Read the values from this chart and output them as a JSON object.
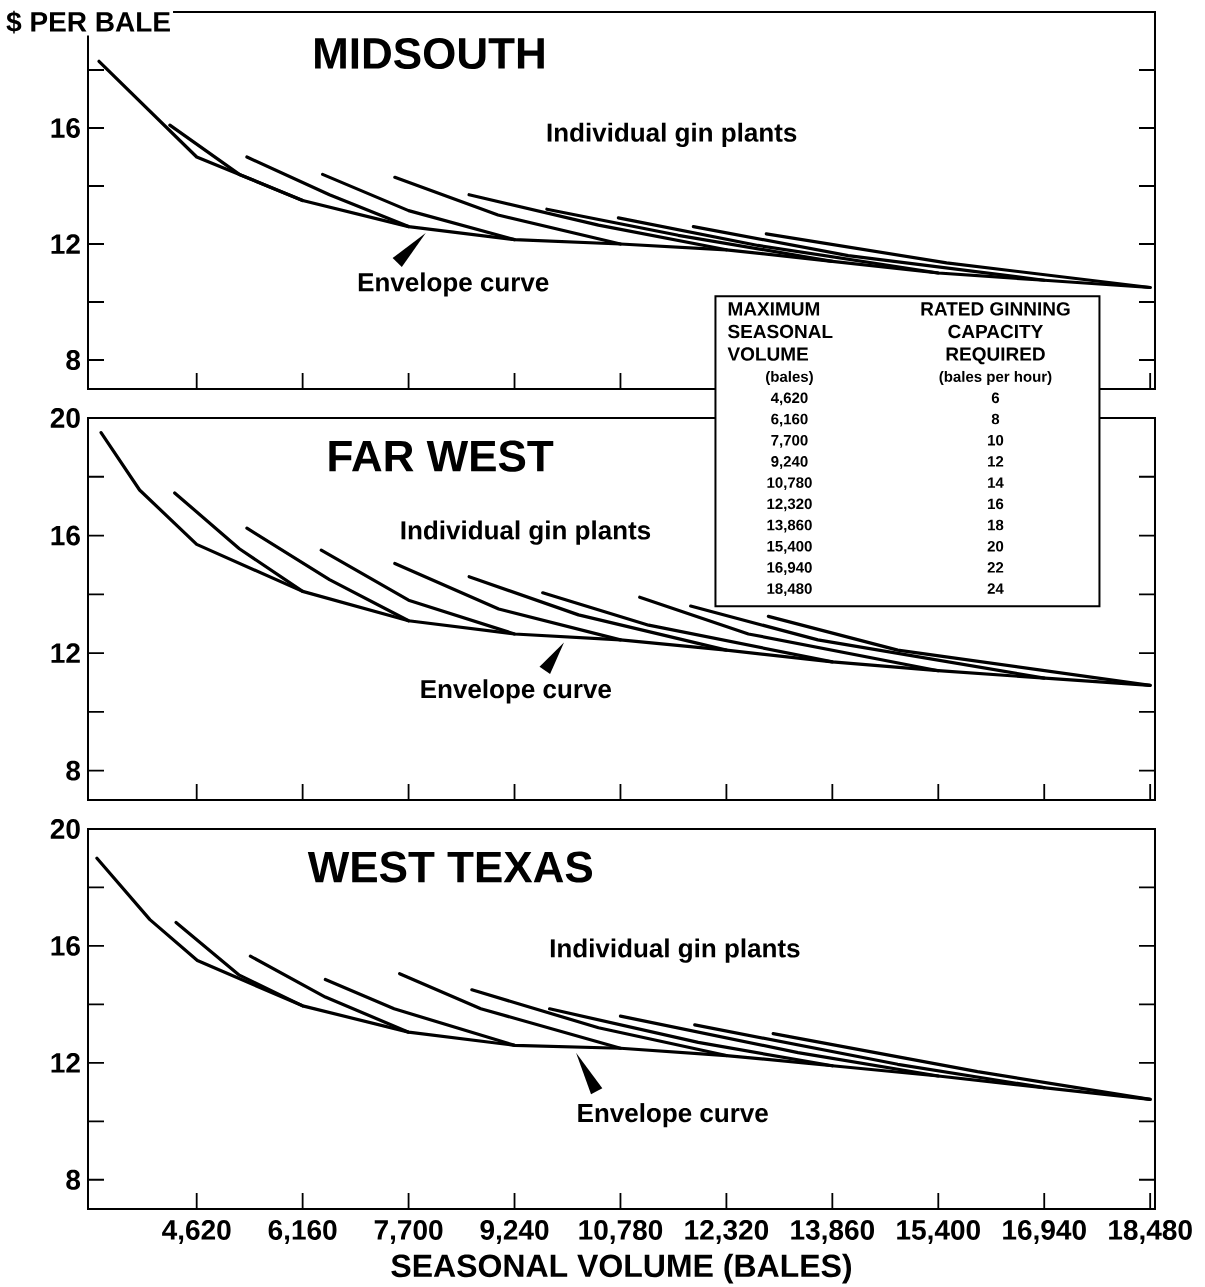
{
  "chart_data": [
    {
      "type": "line",
      "title": "MIDSOUTH",
      "ylabel": "$ PER BALE",
      "tick_labels": "y",
      "xlim": [
        3040,
        18550
      ],
      "ylim": [
        7,
        20
      ],
      "xticks": [
        {
          "value": 4620,
          "label": null
        },
        {
          "value": 6160,
          "label": null
        },
        {
          "value": 7700,
          "label": null
        },
        {
          "value": 9240,
          "label": null
        },
        {
          "value": 10780,
          "label": null
        },
        {
          "value": 12320,
          "label": null
        },
        {
          "value": 13860,
          "label": null
        },
        {
          "value": 15400,
          "label": null
        },
        {
          "value": 16940,
          "label": null
        },
        {
          "value": 18480,
          "label": null
        }
      ],
      "yticks": [
        8,
        {
          "value": 10,
          "label": null
        },
        12,
        {
          "value": 14,
          "label": null
        },
        16,
        {
          "value": 18,
          "label": null
        },
        {
          "value": 20,
          "label": null
        }
      ],
      "annotations": [
        "Individual gin plants",
        {
          "text": "Envelope curve",
          "x": 8000,
          "y": 12.5
        },
        "MAXIMUM SEASONAL VOLUME",
        "(bales)",
        "RATED GINNING CAPACITY REQUIRED",
        "(bales per hour)",
        "4,620",
        "6,160",
        "7,700",
        "9,240",
        "10,780",
        "12,320",
        "13,860",
        "15,400",
        "16,940",
        "18,480",
        "6",
        "8",
        "10",
        "12",
        "14",
        "16",
        "18",
        "20",
        "22",
        "24"
      ],
      "series": [
        {
          "color": "#000000",
          "x": [
            3200,
            4620,
            6160,
            7700,
            9240,
            10780,
            12320,
            13860,
            15400,
            16940,
            18480
          ],
          "values": [
            18.3,
            15.0,
            13.5,
            12.6,
            12.15,
            12.0,
            11.8,
            11.4,
            11.0,
            10.75,
            10.5
          ]
        },
        {
          "color": "#000000",
          "x": [
            4230,
            5240,
            6160
          ],
          "values": [
            16.1,
            14.4,
            13.5
          ]
        },
        {
          "color": "#000000",
          "x": [
            5350,
            6550,
            7700
          ],
          "values": [
            15.0,
            13.7,
            12.6
          ]
        },
        {
          "color": "#000000",
          "x": [
            6450,
            7700,
            9240
          ],
          "values": [
            14.4,
            13.15,
            12.15
          ]
        },
        {
          "color": "#000000",
          "x": [
            7500,
            9000,
            10780
          ],
          "values": [
            14.3,
            13.0,
            12.0
          ]
        },
        {
          "color": "#000000",
          "x": [
            8580,
            10460,
            12320
          ],
          "values": [
            13.7,
            12.65,
            11.8
          ]
        },
        {
          "color": "#000000",
          "x": [
            9710,
            11620,
            13860
          ],
          "values": [
            13.2,
            12.3,
            11.4
          ]
        },
        {
          "color": "#000000",
          "x": [
            10750,
            12780,
            15400
          ],
          "values": [
            12.9,
            11.95,
            11.0
          ]
        },
        {
          "color": "#000000",
          "x": [
            11840,
            14090,
            16940
          ],
          "values": [
            12.6,
            11.6,
            10.75
          ]
        },
        {
          "color": "#000000",
          "x": [
            12900,
            15520,
            18480
          ],
          "values": [
            12.35,
            11.35,
            10.5
          ]
        }
      ]
    },
    {
      "type": "line",
      "title": "FAR WEST",
      "tick_labels": "y",
      "xlim": [
        3040,
        18550
      ],
      "ylim": [
        7,
        20
      ],
      "xticks": [
        {
          "value": 4620,
          "label": null
        },
        {
          "value": 6160,
          "label": null
        },
        {
          "value": 7700,
          "label": null
        },
        {
          "value": 9240,
          "label": null
        },
        {
          "value": 10780,
          "label": null
        },
        {
          "value": 12320,
          "label": null
        },
        {
          "value": 13860,
          "label": null
        },
        {
          "value": 15400,
          "label": null
        },
        {
          "value": 16940,
          "label": null
        },
        {
          "value": 18480,
          "label": null
        }
      ],
      "yticks": [
        8,
        {
          "value": 10,
          "label": null
        },
        12,
        {
          "value": 14,
          "label": null
        },
        16,
        {
          "value": 18,
          "label": null
        },
        20
      ],
      "annotations": [
        "Individual gin plants",
        {
          "text": "Envelope curve",
          "x": 10000,
          "y": 12.5
        }
      ],
      "series": [
        {
          "color": "#000000",
          "x": [
            3230,
            3790,
            4620,
            6160,
            7700,
            9240,
            10780,
            12320,
            13860,
            15400,
            16940,
            18480
          ],
          "values": [
            19.5,
            17.55,
            15.7,
            14.1,
            13.1,
            12.65,
            12.45,
            12.1,
            11.7,
            11.4,
            11.15,
            10.9
          ]
        },
        {
          "color": "#000000",
          "x": [
            4300,
            5240,
            6160
          ],
          "values": [
            17.45,
            15.55,
            14.1
          ]
        },
        {
          "color": "#000000",
          "x": [
            5350,
            6550,
            7700
          ],
          "values": [
            16.25,
            14.5,
            13.1
          ]
        },
        {
          "color": "#000000",
          "x": [
            6430,
            7700,
            9240
          ],
          "values": [
            15.5,
            13.8,
            12.65
          ]
        },
        {
          "color": "#000000",
          "x": [
            7500,
            9010,
            10780
          ],
          "values": [
            15.05,
            13.5,
            12.45
          ]
        },
        {
          "color": "#000000",
          "x": [
            8580,
            10170,
            12320
          ],
          "values": [
            14.6,
            13.3,
            12.1
          ]
        },
        {
          "color": "#000000",
          "x": [
            9650,
            11190,
            13860
          ],
          "values": [
            14.05,
            12.95,
            11.7
          ]
        },
        {
          "color": "#000000",
          "x": [
            11060,
            12640,
            15400
          ],
          "values": [
            13.9,
            12.65,
            11.4
          ]
        },
        {
          "color": "#000000",
          "x": [
            11800,
            13650,
            16940
          ],
          "values": [
            13.6,
            12.45,
            11.15
          ]
        },
        {
          "color": "#000000",
          "x": [
            12930,
            14810,
            18480
          ],
          "values": [
            13.25,
            12.1,
            10.9
          ]
        }
      ]
    },
    {
      "type": "line",
      "title": "WEST TEXAS",
      "xlabel": "SEASONAL VOLUME (BALES)",
      "xlim": [
        3040,
        18550
      ],
      "ylim": [
        7,
        20
      ],
      "xticks": [
        {
          "value": 4620,
          "label": "4,620"
        },
        {
          "value": 6160,
          "label": "6,160"
        },
        {
          "value": 7700,
          "label": "7,700"
        },
        {
          "value": 9240,
          "label": "9,240"
        },
        {
          "value": 10780,
          "label": "10,780"
        },
        {
          "value": 12320,
          "label": "12,320"
        },
        {
          "value": 13860,
          "label": "13,860"
        },
        {
          "value": 15400,
          "label": "15,400"
        },
        {
          "value": 16940,
          "label": "16,940"
        },
        {
          "value": 18480,
          "label": "18,480"
        }
      ],
      "yticks": [
        8,
        {
          "value": 10,
          "label": null
        },
        12,
        {
          "value": 14,
          "label": null
        },
        16,
        {
          "value": 18,
          "label": null
        },
        20
      ],
      "annotations": [
        "Individual gin plants",
        {
          "text": "Envelope curve",
          "x": 10100,
          "y": 12.5
        }
      ],
      "series": [
        {
          "color": "#000000",
          "x": [
            3170,
            3940,
            4630,
            6160,
            7700,
            9240,
            10780,
            12320,
            13860,
            15400,
            16940,
            18480
          ],
          "values": [
            19.0,
            16.9,
            15.5,
            13.95,
            13.05,
            12.6,
            12.5,
            12.25,
            11.9,
            11.55,
            11.15,
            10.75
          ]
        },
        {
          "color": "#000000",
          "x": [
            4320,
            5240,
            6160
          ],
          "values": [
            16.8,
            15.0,
            13.95
          ]
        },
        {
          "color": "#000000",
          "x": [
            5400,
            6490,
            7700
          ],
          "values": [
            15.65,
            14.25,
            13.05
          ]
        },
        {
          "color": "#000000",
          "x": [
            6490,
            7490,
            9240
          ],
          "values": [
            14.85,
            13.85,
            12.6
          ]
        },
        {
          "color": "#000000",
          "x": [
            7570,
            8750,
            10780
          ],
          "values": [
            15.05,
            13.85,
            12.5
          ]
        },
        {
          "color": "#000000",
          "x": [
            8620,
            10460,
            12320
          ],
          "values": [
            14.5,
            13.2,
            12.25
          ]
        },
        {
          "color": "#000000",
          "x": [
            9750,
            11910,
            13860
          ],
          "values": [
            13.85,
            12.7,
            11.9
          ]
        },
        {
          "color": "#000000",
          "x": [
            10780,
            13360,
            15400
          ],
          "values": [
            13.6,
            12.35,
            11.55
          ]
        },
        {
          "color": "#000000",
          "x": [
            11860,
            14810,
            16940
          ],
          "values": [
            13.3,
            11.95,
            11.15
          ]
        },
        {
          "color": "#000000",
          "x": [
            13000,
            15970,
            18480
          ],
          "values": [
            13.0,
            11.7,
            10.75
          ]
        }
      ]
    }
  ]
}
